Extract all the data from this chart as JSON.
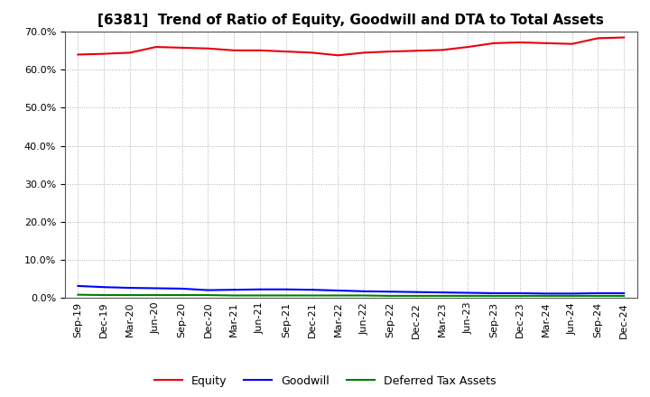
{
  "title": "[6381]  Trend of Ratio of Equity, Goodwill and DTA to Total Assets",
  "x_labels": [
    "Sep-19",
    "Dec-19",
    "Mar-20",
    "Jun-20",
    "Sep-20",
    "Dec-20",
    "Mar-21",
    "Jun-21",
    "Sep-21",
    "Dec-21",
    "Mar-22",
    "Jun-22",
    "Sep-22",
    "Dec-22",
    "Mar-23",
    "Jun-23",
    "Sep-23",
    "Dec-23",
    "Mar-24",
    "Jun-24",
    "Sep-24",
    "Dec-24"
  ],
  "equity": [
    0.64,
    0.642,
    0.645,
    0.66,
    0.658,
    0.656,
    0.651,
    0.651,
    0.648,
    0.645,
    0.638,
    0.645,
    0.648,
    0.65,
    0.652,
    0.66,
    0.67,
    0.672,
    0.67,
    0.668,
    0.683,
    0.685
  ],
  "goodwill": [
    0.031,
    0.028,
    0.026,
    0.025,
    0.024,
    0.02,
    0.021,
    0.022,
    0.022,
    0.021,
    0.019,
    0.017,
    0.016,
    0.015,
    0.014,
    0.013,
    0.012,
    0.012,
    0.011,
    0.011,
    0.012,
    0.012
  ],
  "dta": [
    0.008,
    0.007,
    0.007,
    0.007,
    0.007,
    0.007,
    0.006,
    0.006,
    0.006,
    0.006,
    0.006,
    0.006,
    0.005,
    0.005,
    0.005,
    0.005,
    0.005,
    0.005,
    0.005,
    0.005,
    0.005,
    0.005
  ],
  "equity_color": "#e8000d",
  "goodwill_color": "#0000ff",
  "dta_color": "#008000",
  "ylim": [
    0.0,
    0.7
  ],
  "yticks": [
    0.0,
    0.1,
    0.2,
    0.3,
    0.4,
    0.5,
    0.6,
    0.7
  ],
  "background_color": "#ffffff",
  "plot_bg_color": "#ffffff",
  "grid_color": "#b0b0b0",
  "legend_labels": [
    "Equity",
    "Goodwill",
    "Deferred Tax Assets"
  ],
  "title_fontsize": 11,
  "tick_fontsize": 8,
  "line_width": 1.5
}
